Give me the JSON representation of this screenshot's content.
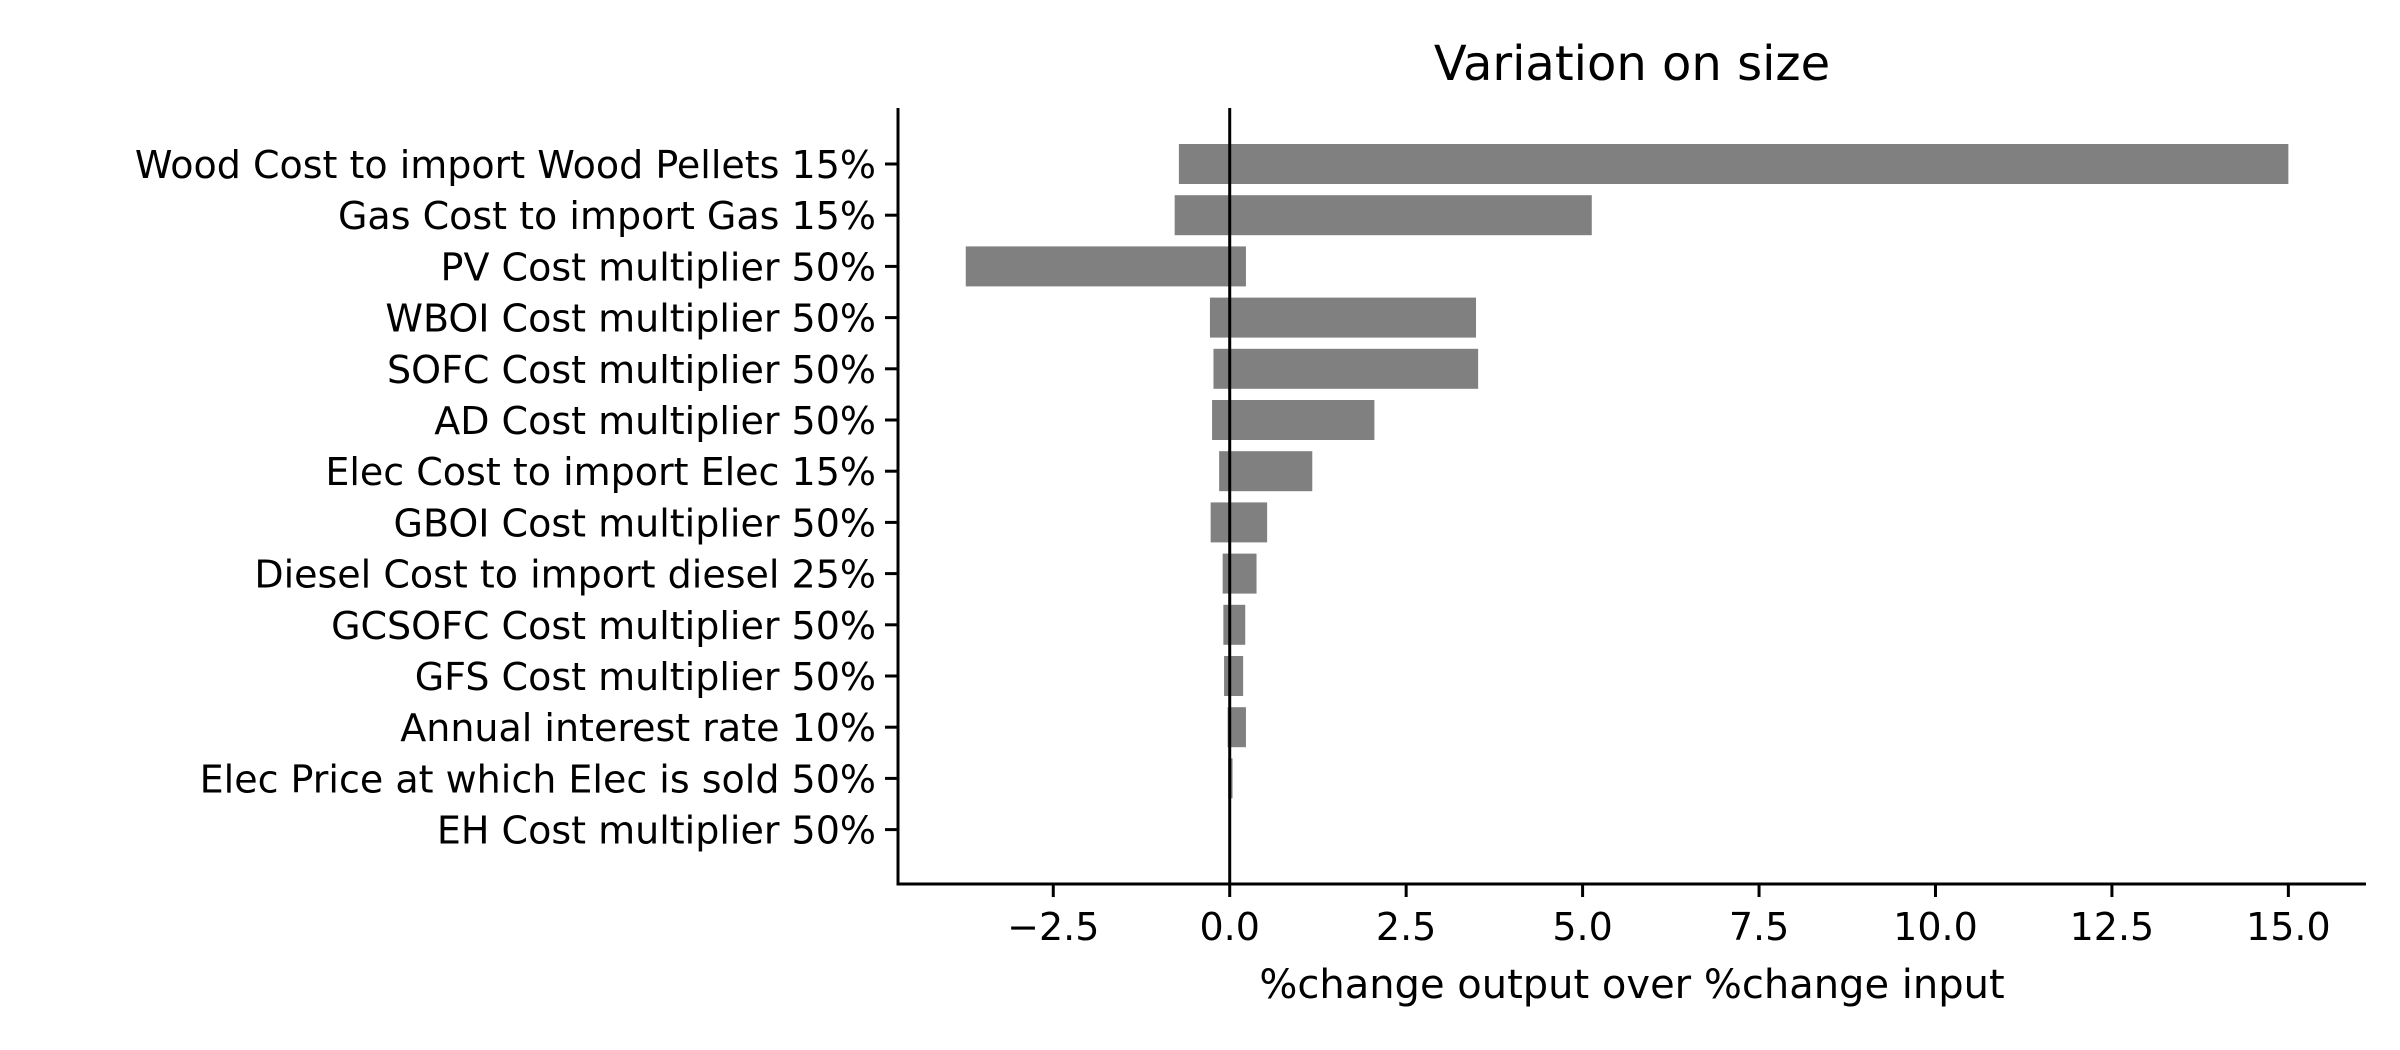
{
  "chart_data": {
    "type": "bar",
    "orientation": "horizontal",
    "title": "Variation on size",
    "xlabel": "%change output over %change input",
    "ylabel": "",
    "xlim": [
      -4.7,
      16.1
    ],
    "xticks": [
      -2.5,
      0.0,
      2.5,
      5.0,
      7.5,
      10.0,
      12.5,
      15.0
    ],
    "xtick_labels": [
      "−2.5",
      "0.0",
      "2.5",
      "5.0",
      "7.5",
      "10.0",
      "12.5",
      "15.0"
    ],
    "categories": [
      "Wood Cost to import Wood Pellets 15%",
      "Gas Cost to import Gas 15%",
      "PV Cost multiplier 50%",
      "WBOI Cost multiplier 50%",
      "SOFC Cost multiplier 50%",
      "AD Cost multiplier 50%",
      "Elec Cost to import Elec  15%",
      "GBOI Cost multiplier 50%",
      "Diesel Cost to import diesel 25%",
      "GCSOFC Cost multiplier 50%",
      "GFS Cost multiplier 50%",
      "Annual interest rate 10%",
      "Elec Price at which Elec is sold 50%",
      "EH Cost multiplier 50%"
    ],
    "series": [
      {
        "values_low": [
          -0.72,
          -0.78,
          -3.74,
          -0.28,
          -0.23,
          -0.25,
          -0.15,
          -0.27,
          -0.1,
          -0.09,
          -0.08,
          -0.03,
          -0.02,
          -0.01
        ],
        "values_high": [
          15.0,
          5.13,
          0.23,
          3.49,
          3.52,
          2.05,
          1.17,
          0.53,
          0.38,
          0.22,
          0.19,
          0.23,
          0.04,
          0.01
        ]
      }
    ],
    "bar_color": "#808080",
    "zero_line": true,
    "grid": false,
    "legend": "none"
  }
}
